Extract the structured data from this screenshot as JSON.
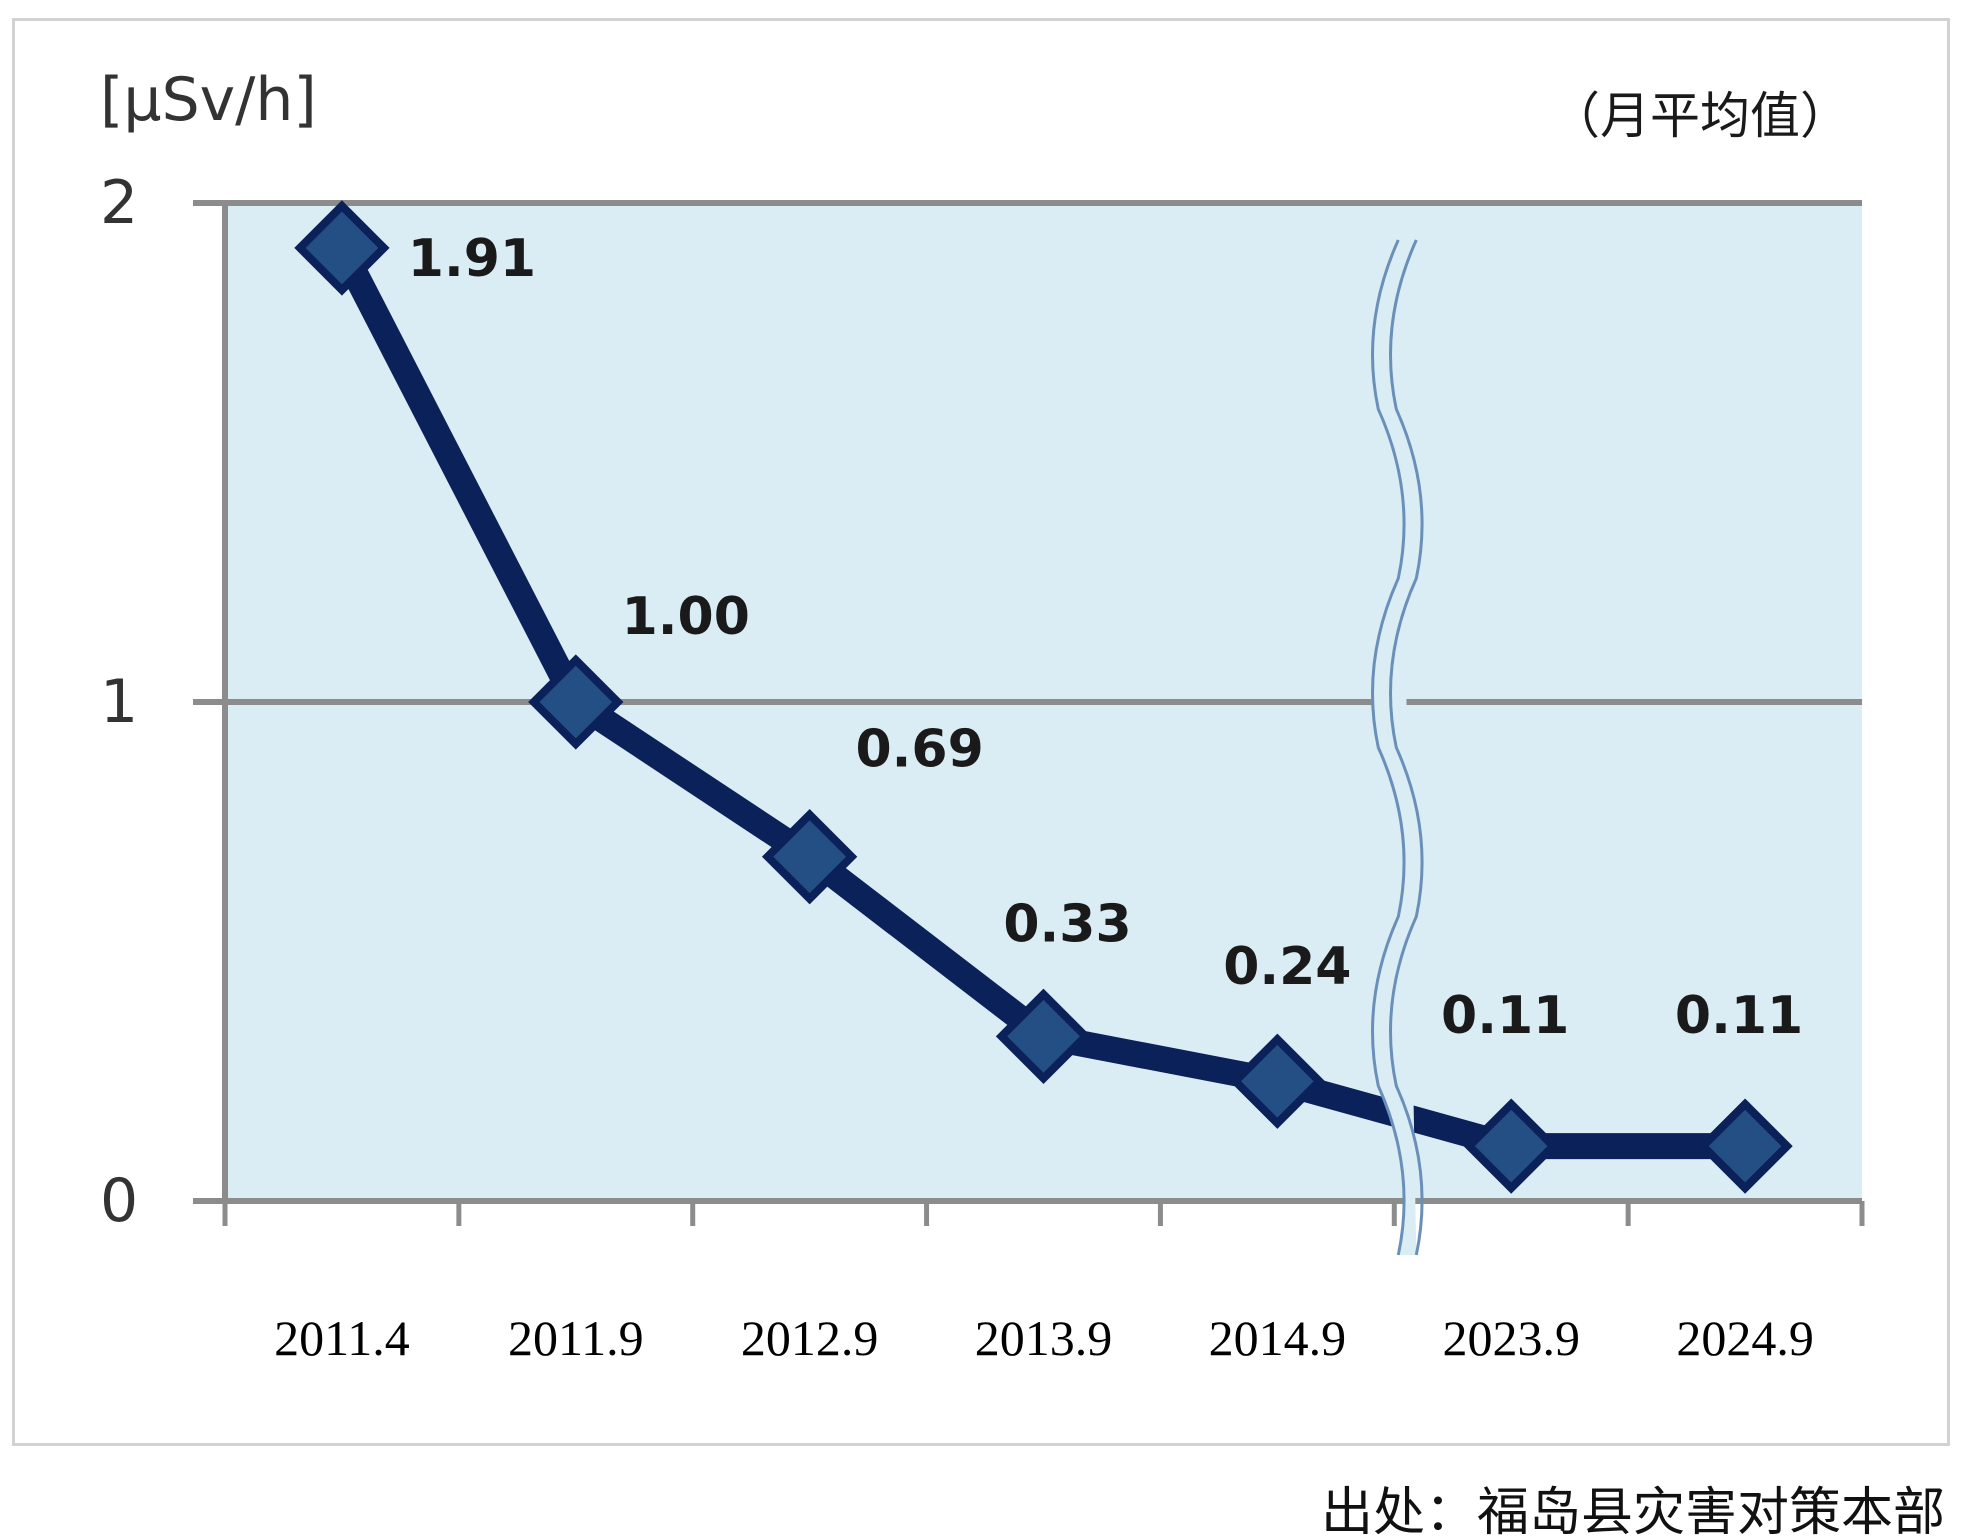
{
  "chart_data": {
    "type": "line",
    "unit_label": "[μSv/h]",
    "note": "（月平均值）",
    "categories": [
      "2011.4",
      "2011.9",
      "2012.9",
      "2013.9",
      "2014.9",
      "2023.9",
      "2024.9"
    ],
    "values": [
      1.91,
      1.0,
      0.69,
      0.33,
      0.24,
      0.11,
      0.11
    ],
    "data_labels": [
      "1.91",
      "1.00",
      "0.69",
      "0.33",
      "0.24",
      "0.11",
      "0.11"
    ],
    "yticks": [
      "0",
      "1",
      "2"
    ],
    "ylim": [
      0,
      2
    ],
    "grid": true,
    "axis_break": "between 2014.9 and 2023.9",
    "colors": {
      "plot_background": "#daedf4",
      "line": "#0b2159",
      "marker": "#244f85",
      "grid": "#8c8c8c"
    },
    "marker": "diamond-icon"
  },
  "source": "出处：福岛县灾害对策本部"
}
